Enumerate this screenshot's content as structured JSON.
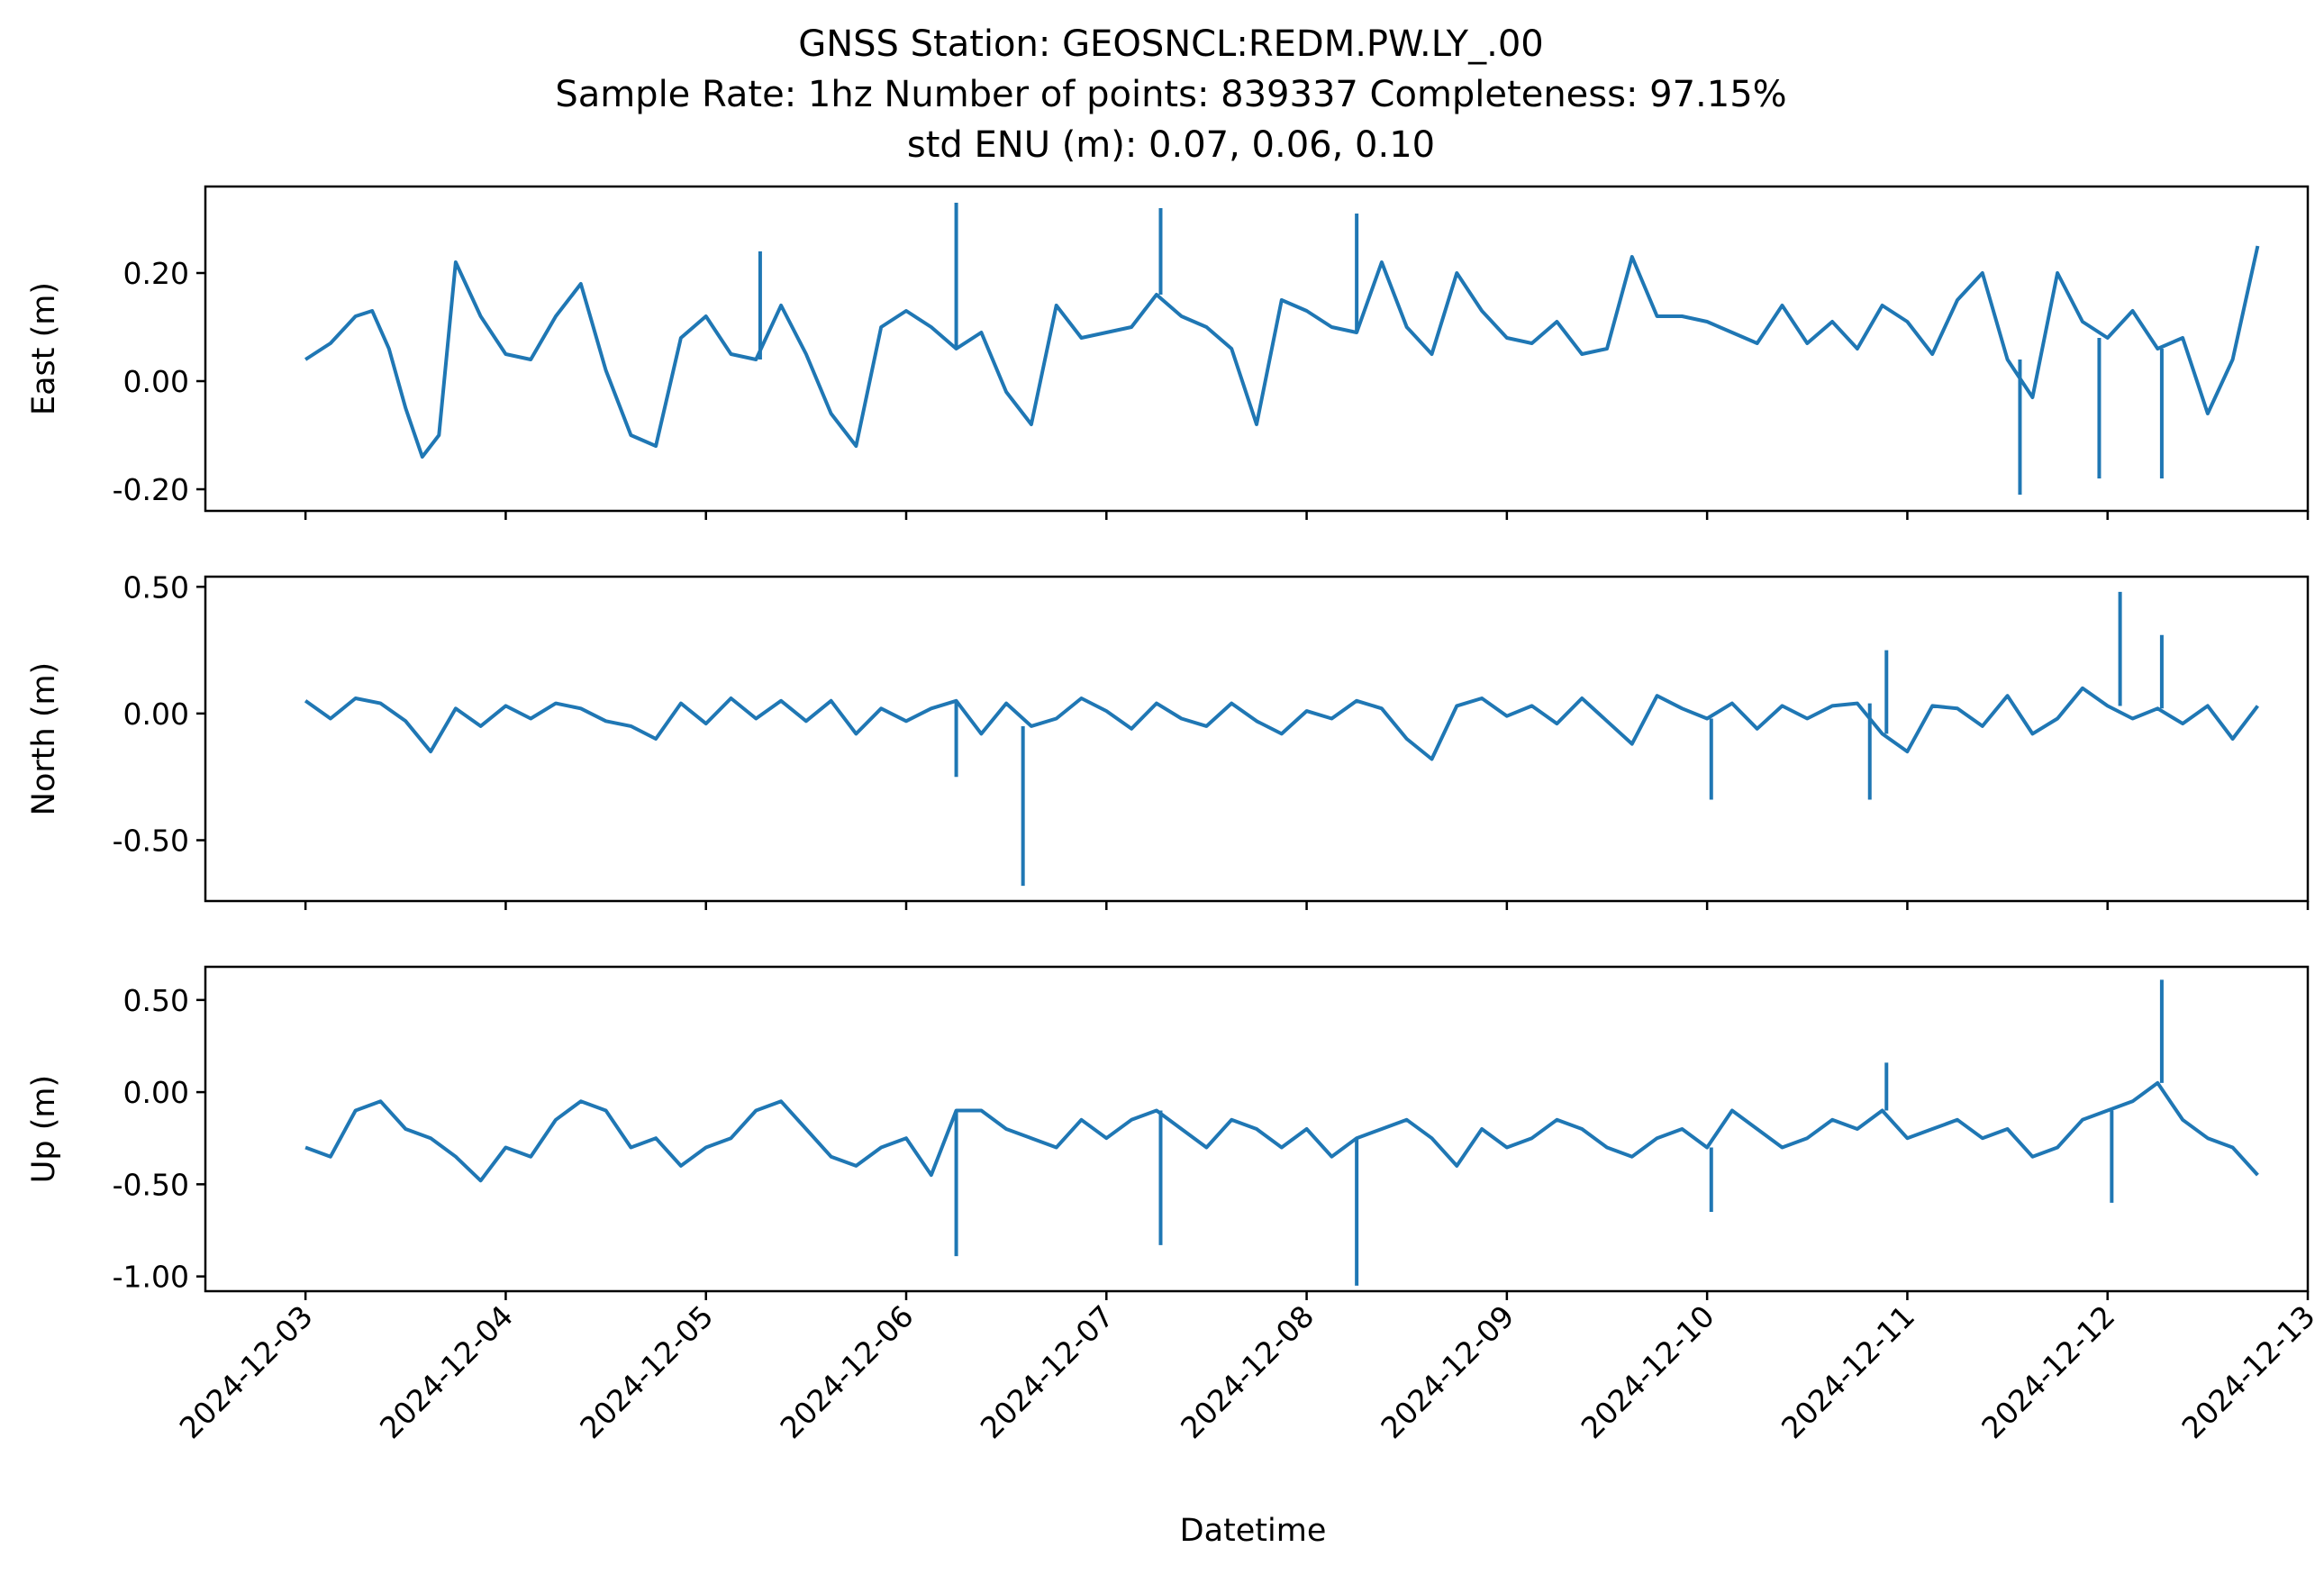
{
  "chart_data": {
    "type": "line",
    "title_lines": [
      "GNSS Station: GEOSNCL:REDM.PW.LY_.00",
      "Sample Rate: 1hz   Number of points: 839337    Completeness:  97.15%",
      "std ENU (m):  0.07, 0.06, 0.10"
    ],
    "xlabel": "Datetime",
    "x_tick_labels": [
      "2024-12-03",
      "2024-12-04",
      "2024-12-05",
      "2024-12-06",
      "2024-12-07",
      "2024-12-08",
      "2024-12-09",
      "2024-12-10",
      "2024-12-11",
      "2024-12-12",
      "2024-12-13"
    ],
    "x_range": [
      "2024-12-02 12:00",
      "2024-12-13 00:00"
    ],
    "line_color": "#1f77b4",
    "panels": [
      {
        "ylabel": "East (m)",
        "ylim": [
          -0.24,
          0.36
        ],
        "y_ticks": [
          0.2,
          0.0,
          -0.2
        ],
        "y_tick_labels": [
          "0.20",
          "0.00",
          "-0.20"
        ],
        "x": [
          "2024-12-03 00:00",
          "2024-12-03 03:00",
          "2024-12-03 06:00",
          "2024-12-03 08:00",
          "2024-12-03 10:00",
          "2024-12-03 12:00",
          "2024-12-03 14:00",
          "2024-12-03 16:00",
          "2024-12-03 18:00",
          "2024-12-03 21:00",
          "2024-12-04 00:00",
          "2024-12-04 03:00",
          "2024-12-04 06:00",
          "2024-12-04 09:00",
          "2024-12-04 12:00",
          "2024-12-04 15:00",
          "2024-12-04 18:00",
          "2024-12-04 21:00",
          "2024-12-05 00:00",
          "2024-12-05 03:00",
          "2024-12-05 06:00",
          "2024-12-05 09:00",
          "2024-12-05 12:00",
          "2024-12-05 15:00",
          "2024-12-05 18:00",
          "2024-12-05 21:00",
          "2024-12-06 00:00",
          "2024-12-06 03:00",
          "2024-12-06 06:00",
          "2024-12-06 09:00",
          "2024-12-06 12:00",
          "2024-12-06 15:00",
          "2024-12-06 18:00",
          "2024-12-06 21:00",
          "2024-12-07 00:00",
          "2024-12-07 03:00",
          "2024-12-07 06:00",
          "2024-12-07 09:00",
          "2024-12-07 12:00",
          "2024-12-07 15:00",
          "2024-12-07 18:00",
          "2024-12-07 21:00",
          "2024-12-08 00:00",
          "2024-12-08 03:00",
          "2024-12-08 06:00",
          "2024-12-08 09:00",
          "2024-12-08 12:00",
          "2024-12-08 15:00",
          "2024-12-08 18:00",
          "2024-12-08 21:00",
          "2024-12-09 00:00",
          "2024-12-09 03:00",
          "2024-12-09 06:00",
          "2024-12-09 09:00",
          "2024-12-09 12:00",
          "2024-12-09 15:00",
          "2024-12-09 18:00",
          "2024-12-09 21:00",
          "2024-12-10 00:00",
          "2024-12-10 03:00",
          "2024-12-10 06:00",
          "2024-12-10 09:00",
          "2024-12-10 12:00",
          "2024-12-10 15:00",
          "2024-12-10 18:00",
          "2024-12-10 21:00",
          "2024-12-11 00:00",
          "2024-12-11 03:00",
          "2024-12-11 06:00",
          "2024-12-11 09:00",
          "2024-12-11 12:00",
          "2024-12-11 15:00",
          "2024-12-11 18:00",
          "2024-12-11 21:00",
          "2024-12-12 00:00",
          "2024-12-12 03:00",
          "2024-12-12 06:00",
          "2024-12-12 09:00",
          "2024-12-12 12:00",
          "2024-12-12 15:00",
          "2024-12-12 18:00"
        ],
        "y": [
          0.04,
          0.07,
          0.12,
          0.13,
          0.06,
          -0.05,
          -0.14,
          -0.1,
          0.22,
          0.12,
          0.05,
          0.04,
          0.12,
          0.18,
          0.02,
          -0.1,
          -0.12,
          0.08,
          0.12,
          0.05,
          0.04,
          0.14,
          0.05,
          -0.06,
          -0.12,
          0.1,
          0.13,
          0.1,
          0.06,
          0.09,
          -0.02,
          -0.08,
          0.14,
          0.08,
          0.09,
          0.1,
          0.16,
          0.12,
          0.1,
          0.06,
          -0.08,
          0.15,
          0.13,
          0.1,
          0.09,
          0.22,
          0.1,
          0.05,
          0.2,
          0.13,
          0.08,
          0.07,
          0.11,
          0.05,
          0.06,
          0.23,
          0.12,
          0.12,
          0.11,
          0.09,
          0.07,
          0.14,
          0.07,
          0.11,
          0.06,
          0.14,
          0.11,
          0.05,
          0.15,
          0.2,
          0.04,
          -0.03,
          0.2,
          0.11,
          0.08,
          0.13,
          0.06,
          0.08,
          -0.06,
          0.04,
          0.25
        ],
        "spikes": [
          {
            "x": "2024-12-06 06:00",
            "y": 0.33
          },
          {
            "x": "2024-12-07 06:30",
            "y": 0.32
          },
          {
            "x": "2024-12-08 06:00",
            "y": 0.31
          },
          {
            "x": "2024-12-05 06:30",
            "y": 0.24
          },
          {
            "x": "2024-12-11 13:30",
            "y": -0.21
          },
          {
            "x": "2024-12-11 23:00",
            "y": -0.18
          },
          {
            "x": "2024-12-12 06:30",
            "y": -0.18
          }
        ]
      },
      {
        "ylabel": "North (m)",
        "ylim": [
          -0.74,
          0.54
        ],
        "y_ticks": [
          0.5,
          0.0,
          -0.5
        ],
        "y_tick_labels": [
          "0.50",
          "0.00",
          "-0.50"
        ],
        "x": [
          "2024-12-03 00:00",
          "2024-12-03 03:00",
          "2024-12-03 06:00",
          "2024-12-03 09:00",
          "2024-12-03 12:00",
          "2024-12-03 15:00",
          "2024-12-03 18:00",
          "2024-12-03 21:00",
          "2024-12-04 00:00",
          "2024-12-04 03:00",
          "2024-12-04 06:00",
          "2024-12-04 09:00",
          "2024-12-04 12:00",
          "2024-12-04 15:00",
          "2024-12-04 18:00",
          "2024-12-04 21:00",
          "2024-12-05 00:00",
          "2024-12-05 03:00",
          "2024-12-05 06:00",
          "2024-12-05 09:00",
          "2024-12-05 12:00",
          "2024-12-05 15:00",
          "2024-12-05 18:00",
          "2024-12-05 21:00",
          "2024-12-06 00:00",
          "2024-12-06 03:00",
          "2024-12-06 06:00",
          "2024-12-06 09:00",
          "2024-12-06 12:00",
          "2024-12-06 15:00",
          "2024-12-06 18:00",
          "2024-12-06 21:00",
          "2024-12-07 00:00",
          "2024-12-07 03:00",
          "2024-12-07 06:00",
          "2024-12-07 09:00",
          "2024-12-07 12:00",
          "2024-12-07 15:00",
          "2024-12-07 18:00",
          "2024-12-07 21:00",
          "2024-12-08 00:00",
          "2024-12-08 03:00",
          "2024-12-08 06:00",
          "2024-12-08 09:00",
          "2024-12-08 12:00",
          "2024-12-08 15:00",
          "2024-12-08 18:00",
          "2024-12-08 21:00",
          "2024-12-09 00:00",
          "2024-12-09 03:00",
          "2024-12-09 06:00",
          "2024-12-09 09:00",
          "2024-12-09 12:00",
          "2024-12-09 15:00",
          "2024-12-09 18:00",
          "2024-12-09 21:00",
          "2024-12-10 00:00",
          "2024-12-10 03:00",
          "2024-12-10 06:00",
          "2024-12-10 09:00",
          "2024-12-10 12:00",
          "2024-12-10 15:00",
          "2024-12-10 18:00",
          "2024-12-10 21:00",
          "2024-12-11 00:00",
          "2024-12-11 03:00",
          "2024-12-11 06:00",
          "2024-12-11 09:00",
          "2024-12-11 12:00",
          "2024-12-11 15:00",
          "2024-12-11 18:00",
          "2024-12-11 21:00",
          "2024-12-12 00:00",
          "2024-12-12 03:00",
          "2024-12-12 06:00",
          "2024-12-12 09:00",
          "2024-12-12 12:00",
          "2024-12-12 15:00",
          "2024-12-12 18:00"
        ],
        "y": [
          0.05,
          -0.02,
          0.06,
          0.04,
          -0.03,
          -0.15,
          0.02,
          -0.05,
          0.03,
          -0.02,
          0.04,
          0.02,
          -0.03,
          -0.05,
          -0.1,
          0.04,
          -0.04,
          0.06,
          -0.02,
          0.05,
          -0.03,
          0.05,
          -0.08,
          0.02,
          -0.03,
          0.02,
          0.05,
          -0.08,
          0.04,
          -0.05,
          -0.02,
          0.06,
          0.01,
          -0.06,
          0.04,
          -0.02,
          -0.05,
          0.04,
          -0.03,
          -0.08,
          0.01,
          -0.02,
          0.05,
          0.02,
          -0.1,
          -0.18,
          0.03,
          0.06,
          -0.01,
          0.03,
          -0.04,
          0.06,
          -0.03,
          -0.12,
          0.07,
          0.02,
          -0.02,
          0.04,
          -0.06,
          0.03,
          -0.02,
          0.03,
          0.04,
          -0.08,
          -0.15,
          0.03,
          0.02,
          -0.05,
          0.07,
          -0.08,
          -0.02,
          0.1,
          0.03,
          -0.02,
          0.02,
          -0.04,
          0.03,
          -0.1,
          0.03
        ],
        "spikes": [
          {
            "x": "2024-12-06 14:00",
            "y": -0.68
          },
          {
            "x": "2024-12-12 01:30",
            "y": 0.48
          },
          {
            "x": "2024-12-12 06:30",
            "y": 0.31
          },
          {
            "x": "2024-12-10 21:30",
            "y": 0.25
          },
          {
            "x": "2024-12-06 06:00",
            "y": -0.25
          },
          {
            "x": "2024-12-10 00:30",
            "y": -0.34
          },
          {
            "x": "2024-12-10 19:30",
            "y": -0.34
          }
        ]
      },
      {
        "ylabel": "Up (m)",
        "ylim": [
          -1.08,
          0.68
        ],
        "y_ticks": [
          0.5,
          0.0,
          -0.5,
          -1.0
        ],
        "y_tick_labels": [
          "0.50",
          "0.00",
          "-0.50",
          "-1.00"
        ],
        "x": [
          "2024-12-03 00:00",
          "2024-12-03 03:00",
          "2024-12-03 06:00",
          "2024-12-03 09:00",
          "2024-12-03 12:00",
          "2024-12-03 15:00",
          "2024-12-03 18:00",
          "2024-12-03 21:00",
          "2024-12-04 00:00",
          "2024-12-04 03:00",
          "2024-12-04 06:00",
          "2024-12-04 09:00",
          "2024-12-04 12:00",
          "2024-12-04 15:00",
          "2024-12-04 18:00",
          "2024-12-04 21:00",
          "2024-12-05 00:00",
          "2024-12-05 03:00",
          "2024-12-05 06:00",
          "2024-12-05 09:00",
          "2024-12-05 12:00",
          "2024-12-05 15:00",
          "2024-12-05 18:00",
          "2024-12-05 21:00",
          "2024-12-06 00:00",
          "2024-12-06 03:00",
          "2024-12-06 06:00",
          "2024-12-06 09:00",
          "2024-12-06 12:00",
          "2024-12-06 15:00",
          "2024-12-06 18:00",
          "2024-12-06 21:00",
          "2024-12-07 00:00",
          "2024-12-07 03:00",
          "2024-12-07 06:00",
          "2024-12-07 09:00",
          "2024-12-07 12:00",
          "2024-12-07 15:00",
          "2024-12-07 18:00",
          "2024-12-07 21:00",
          "2024-12-08 00:00",
          "2024-12-08 03:00",
          "2024-12-08 06:00",
          "2024-12-08 09:00",
          "2024-12-08 12:00",
          "2024-12-08 15:00",
          "2024-12-08 18:00",
          "2024-12-08 21:00",
          "2024-12-09 00:00",
          "2024-12-09 03:00",
          "2024-12-09 06:00",
          "2024-12-09 09:00",
          "2024-12-09 12:00",
          "2024-12-09 15:00",
          "2024-12-09 18:00",
          "2024-12-09 21:00",
          "2024-12-10 00:00",
          "2024-12-10 03:00",
          "2024-12-10 06:00",
          "2024-12-10 09:00",
          "2024-12-10 12:00",
          "2024-12-10 15:00",
          "2024-12-10 18:00",
          "2024-12-10 21:00",
          "2024-12-11 00:00",
          "2024-12-11 03:00",
          "2024-12-11 06:00",
          "2024-12-11 09:00",
          "2024-12-11 12:00",
          "2024-12-11 15:00",
          "2024-12-11 18:00",
          "2024-12-11 21:00",
          "2024-12-12 00:00",
          "2024-12-12 03:00",
          "2024-12-12 06:00",
          "2024-12-12 09:00",
          "2024-12-12 12:00",
          "2024-12-12 15:00",
          "2024-12-12 18:00"
        ],
        "y": [
          -0.3,
          -0.35,
          -0.1,
          -0.05,
          -0.2,
          -0.25,
          -0.35,
          -0.48,
          -0.3,
          -0.35,
          -0.15,
          -0.05,
          -0.1,
          -0.3,
          -0.25,
          -0.4,
          -0.3,
          -0.25,
          -0.1,
          -0.05,
          -0.2,
          -0.35,
          -0.4,
          -0.3,
          -0.25,
          -0.45,
          -0.1,
          -0.1,
          -0.2,
          -0.25,
          -0.3,
          -0.15,
          -0.25,
          -0.15,
          -0.1,
          -0.2,
          -0.3,
          -0.15,
          -0.2,
          -0.3,
          -0.2,
          -0.35,
          -0.25,
          -0.2,
          -0.15,
          -0.25,
          -0.4,
          -0.2,
          -0.3,
          -0.25,
          -0.15,
          -0.2,
          -0.3,
          -0.35,
          -0.25,
          -0.2,
          -0.3,
          -0.1,
          -0.2,
          -0.3,
          -0.25,
          -0.15,
          -0.2,
          -0.1,
          -0.25,
          -0.2,
          -0.15,
          -0.25,
          -0.2,
          -0.35,
          -0.3,
          -0.15,
          -0.1,
          -0.05,
          0.05,
          -0.15,
          -0.25,
          -0.3,
          -0.45
        ],
        "spikes": [
          {
            "x": "2024-12-06 06:00",
            "y": -0.89
          },
          {
            "x": "2024-12-07 06:30",
            "y": -0.83
          },
          {
            "x": "2024-12-08 06:00",
            "y": -1.05
          },
          {
            "x": "2024-12-12 06:30",
            "y": 0.61
          },
          {
            "x": "2024-12-10 21:30",
            "y": 0.16
          },
          {
            "x": "2024-12-10 00:30",
            "y": -0.65
          },
          {
            "x": "2024-12-12 00:30",
            "y": -0.6
          }
        ]
      }
    ]
  }
}
